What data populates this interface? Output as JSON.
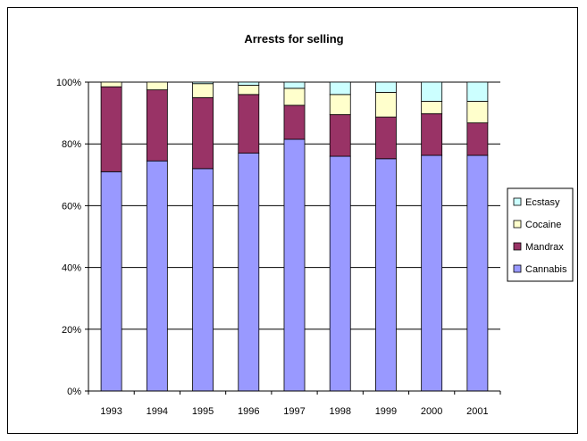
{
  "chart_data": {
    "type": "bar",
    "stacked": true,
    "normalized": true,
    "title": "Arrests for selling",
    "categories": [
      "1993",
      "1994",
      "1995",
      "1996",
      "1997",
      "1998",
      "1999",
      "2000",
      "2001"
    ],
    "series": [
      {
        "name": "Cannabis",
        "color": "#9999ff",
        "values": [
          71,
          74.5,
          72,
          77,
          81.5,
          76,
          75.2,
          76.3,
          76.3
        ]
      },
      {
        "name": "Mandrax",
        "color": "#993366",
        "values": [
          27.5,
          23,
          23,
          19,
          11,
          13.5,
          13.5,
          13.5,
          10.5
        ]
      },
      {
        "name": "Cocaine",
        "color": "#ffffcc",
        "values": [
          1.5,
          2.5,
          4.5,
          3,
          5.5,
          6.5,
          8,
          4,
          7
        ]
      },
      {
        "name": "Ecstasy",
        "color": "#ccffff",
        "values": [
          0,
          0,
          0.5,
          1,
          2,
          4,
          3.3,
          6.2,
          6.2
        ]
      }
    ],
    "ylim": [
      0,
      100
    ],
    "yticks": [
      "0%",
      "20%",
      "40%",
      "60%",
      "80%",
      "100%"
    ],
    "grid": true,
    "legend": {
      "position": "right",
      "order": [
        "Ecstasy",
        "Cocaine",
        "Mandrax",
        "Cannabis"
      ]
    }
  }
}
